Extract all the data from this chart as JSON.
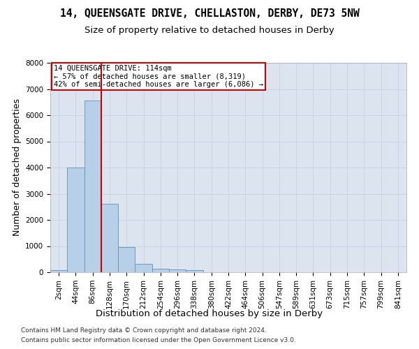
{
  "title": "14, QUEENSGATE DRIVE, CHELLASTON, DERBY, DE73 5NW",
  "subtitle": "Size of property relative to detached houses in Derby",
  "xlabel": "Distribution of detached houses by size in Derby",
  "ylabel": "Number of detached properties",
  "bar_color": "#b8cfe8",
  "bar_edge_color": "#6090c0",
  "grid_color": "#c8d0e0",
  "background_color": "#dce4f0",
  "vline_color": "#cc0000",
  "annotation_text": "14 QUEENSGATE DRIVE: 114sqm\n← 57% of detached houses are smaller (8,319)\n42% of semi-detached houses are larger (6,086) →",
  "annotation_edge_color": "#cc0000",
  "bin_labels": [
    "2sqm",
    "44sqm",
    "86sqm",
    "128sqm",
    "170sqm",
    "212sqm",
    "254sqm",
    "296sqm",
    "338sqm",
    "380sqm",
    "422sqm",
    "464sqm",
    "506sqm",
    "547sqm",
    "589sqm",
    "631sqm",
    "673sqm",
    "715sqm",
    "757sqm",
    "799sqm",
    "841sqm"
  ],
  "bar_heights": [
    80,
    4000,
    6550,
    2620,
    950,
    310,
    130,
    110,
    80,
    0,
    0,
    0,
    0,
    0,
    0,
    0,
    0,
    0,
    0,
    0,
    0
  ],
  "ylim": [
    0,
    8000
  ],
  "yticks": [
    0,
    1000,
    2000,
    3000,
    4000,
    5000,
    6000,
    7000,
    8000
  ],
  "footnote_line1": "Contains HM Land Registry data © Crown copyright and database right 2024.",
  "footnote_line2": "Contains public sector information licensed under the Open Government Licence v3.0.",
  "title_fontsize": 10.5,
  "subtitle_fontsize": 9.5,
  "xlabel_fontsize": 9.5,
  "ylabel_fontsize": 9,
  "tick_fontsize": 7.5,
  "footnote_fontsize": 6.5,
  "annotation_fontsize": 7.5
}
